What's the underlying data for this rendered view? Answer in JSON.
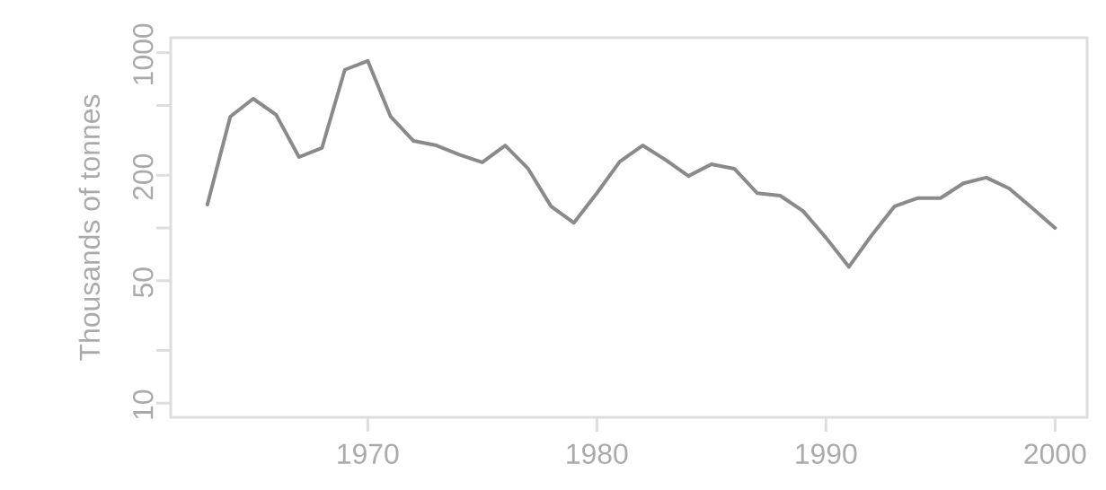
{
  "chart_data": {
    "type": "line",
    "ylabel": "Thousands of tonnes",
    "log": "y",
    "x": [
      1963,
      1964,
      1965,
      1966,
      1967,
      1968,
      1969,
      1970,
      1971,
      1972,
      1973,
      1974,
      1975,
      1976,
      1977,
      1978,
      1979,
      1980,
      1981,
      1982,
      1983,
      1984,
      1985,
      1986,
      1987,
      1988,
      1989,
      1990,
      1991,
      1992,
      1993,
      1994,
      1995,
      1996,
      1997,
      1998,
      1999,
      2000
    ],
    "series": [
      {
        "color": "#8a8a8a",
        "values": [
          136,
          432,
          547,
          443,
          254,
          286,
          800,
          900,
          432,
          314,
          296,
          262,
          237,
          296,
          218,
          133,
          107,
          158,
          239,
          296,
          245,
          198,
          231,
          218,
          158,
          153,
          125,
          88,
          60,
          91,
          133,
          148,
          148,
          180,
          194,
          168,
          130,
          100
        ]
      }
    ],
    "xlim": [
      1961.4,
      2001.4
    ],
    "ylim": [
      8.3,
      1220
    ],
    "xticks": [
      1970,
      1980,
      1990,
      2000
    ],
    "yticks": [
      10,
      {
        "value": 20,
        "label": null
      },
      50,
      {
        "value": 100,
        "label": null
      },
      200,
      {
        "value": 500,
        "label": null
      },
      1000
    ],
    "grid": false,
    "marker": "none",
    "line_style": "solid"
  }
}
